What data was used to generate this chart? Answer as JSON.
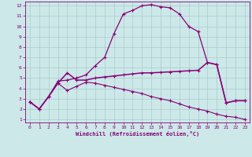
{
  "xlabel": "Windchill (Refroidissement éolien,°C)",
  "background_color": "#cce8e8",
  "grid_color": "#aacccc",
  "line_color": "#880077",
  "xlim": [
    -0.5,
    23.5
  ],
  "ylim": [
    0.7,
    12.4
  ],
  "xticks": [
    0,
    1,
    2,
    3,
    4,
    5,
    6,
    7,
    8,
    9,
    10,
    11,
    12,
    13,
    14,
    15,
    16,
    17,
    18,
    19,
    20,
    21,
    22,
    23
  ],
  "yticks": [
    1,
    2,
    3,
    4,
    5,
    6,
    7,
    8,
    9,
    10,
    11,
    12
  ],
  "curve1_x": [
    0,
    1,
    2,
    3,
    4,
    5,
    6,
    7,
    8,
    9,
    10,
    11,
    12,
    13,
    14,
    15,
    16,
    17,
    18,
    19,
    20,
    21,
    22,
    23
  ],
  "curve1_y": [
    2.7,
    2.0,
    3.2,
    4.7,
    4.8,
    5.0,
    5.3,
    6.2,
    7.0,
    9.3,
    11.2,
    11.55,
    12.0,
    12.1,
    11.9,
    11.8,
    11.2,
    10.0,
    9.5,
    6.5,
    6.3,
    2.6,
    2.8,
    2.8
  ],
  "curve2_x": [
    0,
    1,
    2,
    3,
    4,
    5,
    6,
    7,
    8,
    9,
    10,
    11,
    12,
    13,
    14,
    15,
    16,
    17,
    18,
    19,
    20,
    21,
    22,
    23
  ],
  "curve2_y": [
    2.7,
    2.0,
    3.2,
    4.5,
    5.5,
    4.8,
    4.8,
    5.0,
    5.1,
    5.2,
    5.3,
    5.4,
    5.5,
    5.5,
    5.55,
    5.6,
    5.65,
    5.7,
    5.75,
    6.5,
    6.3,
    2.6,
    2.8,
    2.8
  ],
  "curve3_x": [
    0,
    1,
    2,
    3,
    4,
    5,
    6,
    7,
    8,
    9,
    10,
    11,
    12,
    13,
    14,
    15,
    16,
    17,
    18,
    19,
    20,
    21,
    22,
    23
  ],
  "curve3_y": [
    2.7,
    2.0,
    3.2,
    4.5,
    3.8,
    4.2,
    4.6,
    4.5,
    4.3,
    4.1,
    3.9,
    3.7,
    3.5,
    3.2,
    3.0,
    2.8,
    2.5,
    2.2,
    2.0,
    1.8,
    1.5,
    1.3,
    1.2,
    1.0
  ]
}
